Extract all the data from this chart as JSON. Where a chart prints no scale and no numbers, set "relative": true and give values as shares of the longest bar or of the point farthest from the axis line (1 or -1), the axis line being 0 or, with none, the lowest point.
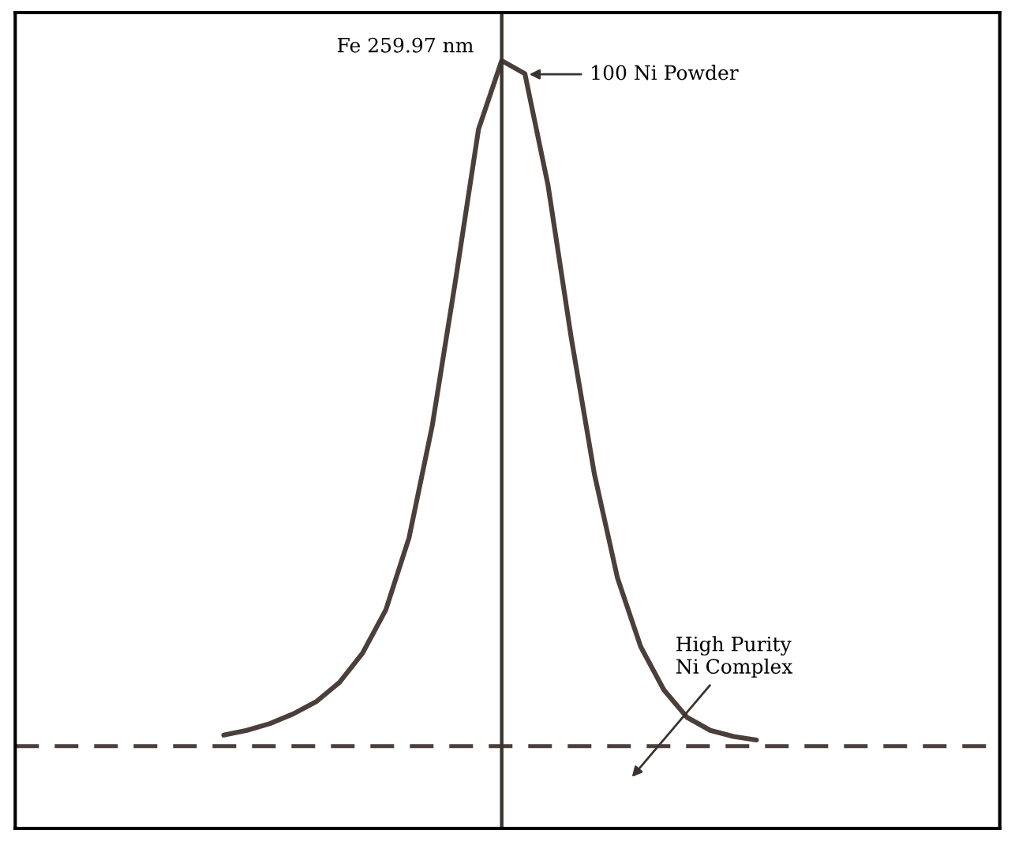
{
  "chart_data": {
    "type": "line",
    "relative": true,
    "grid": false,
    "legend": false,
    "marker": "none",
    "categories": [
      null,
      null,
      null,
      null,
      null,
      null,
      null,
      null,
      null,
      null,
      null,
      null,
      null,
      null,
      null,
      null,
      null,
      null,
      null,
      null,
      null,
      null,
      null,
      null
    ],
    "series": [
      {
        "color": "#4a3f3a",
        "line_style": "solid",
        "values": [
          0.016,
          0.023,
          0.033,
          0.047,
          0.065,
          0.093,
          0.136,
          0.199,
          0.304,
          0.467,
          0.678,
          0.9,
          1.0,
          0.981,
          0.818,
          0.596,
          0.397,
          0.245,
          0.145,
          0.082,
          0.042,
          0.023,
          0.014,
          0.009
        ]
      }
    ],
    "ref_lines": [
      {
        "axis": "y",
        "value": 0,
        "color": "#4a3f3a",
        "line_style": "dashed"
      }
    ],
    "annotations": [
      "Fe 259.97 nm",
      "100 Ni Powder",
      "High Purity\nNi Complex"
    ]
  }
}
